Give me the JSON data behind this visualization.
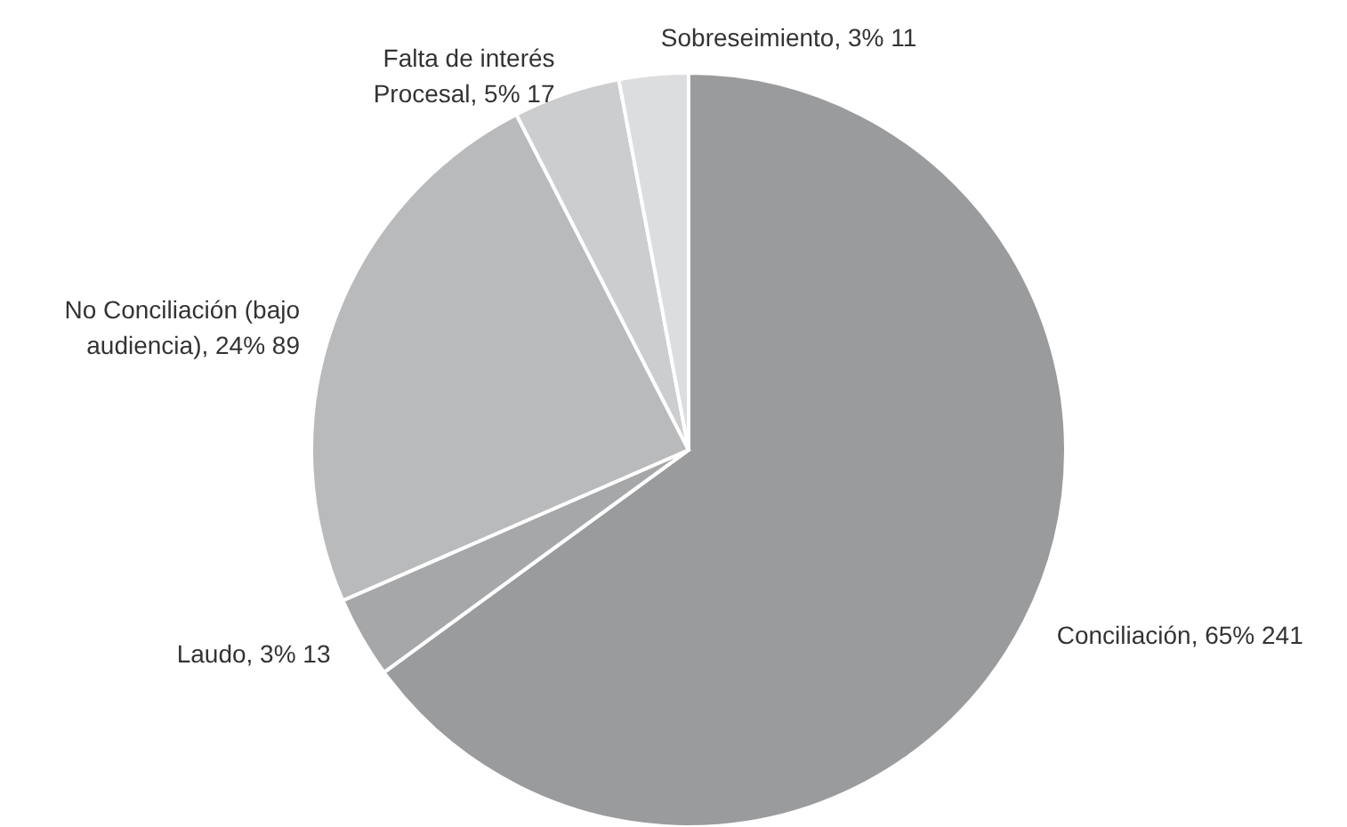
{
  "chart_data": {
    "type": "pie",
    "categories": [
      "Conciliación",
      "Laudo",
      "No Conciliación (bajo audiencia)",
      "Falta de interés Procesal",
      "Sobreseimiento"
    ],
    "values": [
      241,
      13,
      89,
      17,
      11
    ],
    "colors": [
      "#9a9b9d",
      "#a6a7a9",
      "#b9babc",
      "#cccdcf",
      "#dcdddf"
    ],
    "value_labels": [
      "65% 241",
      "3% 13",
      "24% 89",
      "5% 17",
      "3% 11"
    ]
  }
}
